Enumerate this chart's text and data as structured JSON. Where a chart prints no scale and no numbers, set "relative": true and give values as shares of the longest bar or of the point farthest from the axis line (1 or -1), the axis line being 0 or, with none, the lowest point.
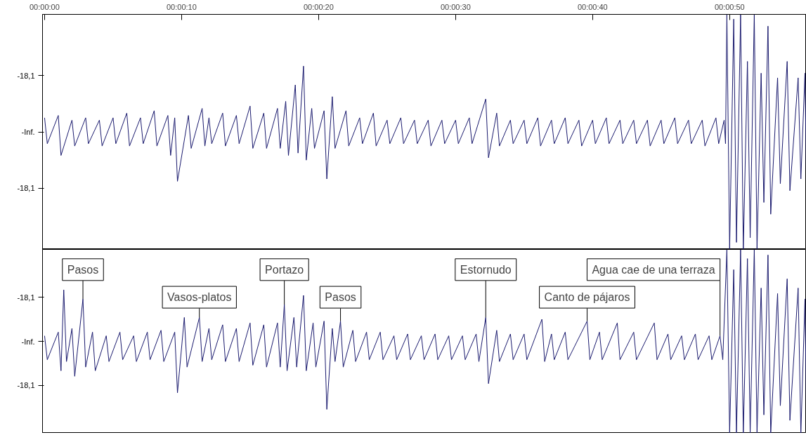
{
  "chart_data": [
    {
      "type": "line",
      "xlim": [
        -0.15,
        55.6
      ],
      "xticks": [
        {
          "value": 0,
          "label": "00:00:00"
        },
        {
          "value": 10,
          "label": "00:00:10"
        },
        {
          "value": 20,
          "label": "00:00:20"
        },
        {
          "value": 30,
          "label": "00:00:30"
        },
        {
          "value": 40,
          "label": "00:00:40"
        },
        {
          "value": 50,
          "label": "00:00:50"
        }
      ],
      "relative": true,
      "annotations": [
        "-18,1",
        "-Inf.",
        "-18,1"
      ],
      "grid": false,
      "marker": "none",
      "line_style": "solid",
      "series": [
        {
          "color": "#1a1a6e",
          "x": [
            0,
            0.2,
            1,
            1.2,
            2,
            2.2,
            3,
            3.2,
            4,
            4.2,
            5,
            5.2,
            6,
            6.2,
            7,
            7.2,
            8,
            8.2,
            9,
            9.2,
            9.5,
            9.7,
            10.5,
            10.7,
            11.5,
            11.7,
            12,
            12.2,
            13,
            13.2,
            14,
            14.2,
            15,
            15.2,
            16,
            16.2,
            17,
            17.2,
            17.6,
            17.8,
            18.3,
            18.5,
            18.9,
            19.1,
            19.5,
            19.7,
            20.4,
            20.6,
            21,
            21.2,
            22,
            22.2,
            23,
            23.2,
            24,
            24.2,
            25,
            25.2,
            26,
            26.2,
            27,
            27.2,
            28,
            28.2,
            29,
            29.2,
            30,
            30.2,
            31,
            31.2,
            32.2,
            32.4,
            33,
            33.2,
            34,
            34.2,
            35,
            35.2,
            36,
            36.2,
            37,
            37.2,
            38,
            38.2,
            39,
            39.2,
            40,
            40.2,
            41,
            41.2,
            42,
            42.2,
            43,
            43.2,
            44,
            44.2,
            45,
            45.2,
            46,
            46.2,
            47,
            47.2,
            48,
            48.2,
            49,
            49.2,
            49.6,
            49.7,
            49.8,
            50.0,
            50.3,
            50.5,
            50.8,
            51.0,
            51.3,
            51.5,
            51.8,
            52.0,
            52.3,
            52.5,
            52.8,
            53.0,
            53.5,
            53.7,
            54.2,
            54.4,
            55,
            55.2,
            55.5,
            55.6
          ],
          "values": [
            0.56,
            0.45,
            0.57,
            0.4,
            0.55,
            0.44,
            0.56,
            0.45,
            0.55,
            0.44,
            0.56,
            0.45,
            0.58,
            0.44,
            0.56,
            0.45,
            0.59,
            0.44,
            0.57,
            0.4,
            0.56,
            0.29,
            0.57,
            0.43,
            0.6,
            0.44,
            0.56,
            0.45,
            0.58,
            0.44,
            0.57,
            0.45,
            0.61,
            0.43,
            0.58,
            0.43,
            0.6,
            0.43,
            0.63,
            0.4,
            0.7,
            0.41,
            0.78,
            0.38,
            0.6,
            0.43,
            0.59,
            0.3,
            0.65,
            0.43,
            0.59,
            0.44,
            0.56,
            0.45,
            0.58,
            0.44,
            0.55,
            0.45,
            0.56,
            0.45,
            0.55,
            0.45,
            0.55,
            0.44,
            0.55,
            0.45,
            0.55,
            0.45,
            0.56,
            0.45,
            0.64,
            0.39,
            0.58,
            0.44,
            0.55,
            0.45,
            0.55,
            0.45,
            0.56,
            0.44,
            0.55,
            0.45,
            0.56,
            0.45,
            0.55,
            0.44,
            0.55,
            0.45,
            0.56,
            0.45,
            0.55,
            0.45,
            0.55,
            0.45,
            0.55,
            0.44,
            0.55,
            0.45,
            0.56,
            0.45,
            0.55,
            0.45,
            0.55,
            0.44,
            0.56,
            0.45,
            0.55,
            0.45,
            1,
            0,
            0.98,
            0.03,
            1,
            0,
            0.8,
            0.05,
            1,
            0,
            0.75,
            0.2,
            0.95,
            0.15,
            0.73,
            0.28,
            0.8,
            0.25,
            0.73,
            0.3,
            0.75,
            0.33
          ]
        }
      ]
    },
    {
      "type": "line",
      "xlim": [
        -0.15,
        55.6
      ],
      "relative": true,
      "tick_labels": "y",
      "grid": false,
      "marker": "none",
      "line_style": "solid",
      "series": [
        {
          "color": "#1a1a6e",
          "x": [
            0,
            0.2,
            1,
            1.2,
            1.4,
            1.6,
            2,
            2.2,
            2.8,
            3.0,
            3.5,
            3.7,
            4.5,
            4.7,
            5.5,
            5.7,
            6.5,
            6.7,
            7.5,
            7.7,
            8.5,
            8.7,
            9.5,
            9.7,
            10.2,
            10.4,
            11.3,
            11.5,
            12,
            12.2,
            13,
            13.2,
            14,
            14.2,
            15,
            15.2,
            16,
            16.2,
            17,
            17.2,
            17.5,
            17.7,
            18.2,
            18.4,
            18.9,
            19.1,
            19.6,
            19.8,
            20.4,
            20.6,
            21,
            21.2,
            21.6,
            21.8,
            22.5,
            22.7,
            23.5,
            23.7,
            24.5,
            24.7,
            25.5,
            25.7,
            26.5,
            26.7,
            27.5,
            27.7,
            28.5,
            28.7,
            29.5,
            29.7,
            30.5,
            30.7,
            31.5,
            31.7,
            32.2,
            32.4,
            33,
            33.2,
            34,
            34.2,
            35,
            35.2,
            36.3,
            36.5,
            37,
            37.2,
            38,
            38.2,
            39.6,
            39.8,
            40.5,
            40.7,
            41.8,
            42.0,
            43,
            43.2,
            44.5,
            44.7,
            45.5,
            45.7,
            46.5,
            46.7,
            47.5,
            47.7,
            48.5,
            48.7,
            49.3,
            49.5,
            49.8,
            50.0,
            50.3,
            50.5,
            50.8,
            51.0,
            51.3,
            51.5,
            51.8,
            52.0,
            52.3,
            52.5,
            52.8,
            53.0,
            53.5,
            53.7,
            54.2,
            54.4,
            55,
            55.2,
            55.5,
            55.6
          ],
          "values": [
            0.53,
            0.4,
            0.55,
            0.34,
            0.78,
            0.39,
            0.57,
            0.31,
            0.73,
            0.36,
            0.55,
            0.34,
            0.53,
            0.39,
            0.55,
            0.4,
            0.53,
            0.39,
            0.55,
            0.4,
            0.56,
            0.39,
            0.55,
            0.22,
            0.63,
            0.36,
            0.63,
            0.39,
            0.57,
            0.4,
            0.59,
            0.39,
            0.57,
            0.39,
            0.6,
            0.37,
            0.59,
            0.36,
            0.6,
            0.36,
            0.7,
            0.34,
            0.63,
            0.36,
            0.75,
            0.34,
            0.6,
            0.36,
            0.61,
            0.13,
            0.57,
            0.39,
            0.61,
            0.36,
            0.56,
            0.39,
            0.55,
            0.4,
            0.55,
            0.4,
            0.53,
            0.4,
            0.54,
            0.4,
            0.53,
            0.4,
            0.54,
            0.4,
            0.53,
            0.4,
            0.53,
            0.4,
            0.54,
            0.39,
            0.63,
            0.27,
            0.56,
            0.39,
            0.54,
            0.4,
            0.54,
            0.4,
            0.62,
            0.39,
            0.54,
            0.4,
            0.55,
            0.4,
            0.61,
            0.4,
            0.55,
            0.4,
            0.6,
            0.4,
            0.55,
            0.4,
            0.6,
            0.4,
            0.54,
            0.4,
            0.53,
            0.4,
            0.54,
            0.4,
            0.53,
            0.4,
            0.53,
            0.4,
            1,
            0,
            0.89,
            0,
            1,
            0,
            0.95,
            0,
            1,
            0,
            0.79,
            0.1,
            0.97,
            0,
            0.76,
            0.15,
            0.84,
            0.07,
            0.79,
            0,
            0.73,
            0.15
          ]
        }
      ],
      "annotations": [
        "-18,1",
        "-Inf.",
        "-18,1",
        {
          "text": "Pasos",
          "x": 2.8,
          "y": 0.73
        },
        {
          "text": "Vasos-platos",
          "x": 11.3,
          "y": 0.63
        },
        {
          "text": "Portazo",
          "x": 17.5,
          "y": 0.7
        },
        {
          "text": "Pasos",
          "x": 21.6,
          "y": 0.61
        },
        {
          "text": "Estornudo",
          "x": 32.2,
          "y": 0.63
        },
        {
          "text": "Canto de pájaros",
          "x": 39.6,
          "y": 0.61
        },
        {
          "text": "Agua cae de una terraza",
          "x": 49.3,
          "y": 0.53
        }
      ]
    }
  ]
}
